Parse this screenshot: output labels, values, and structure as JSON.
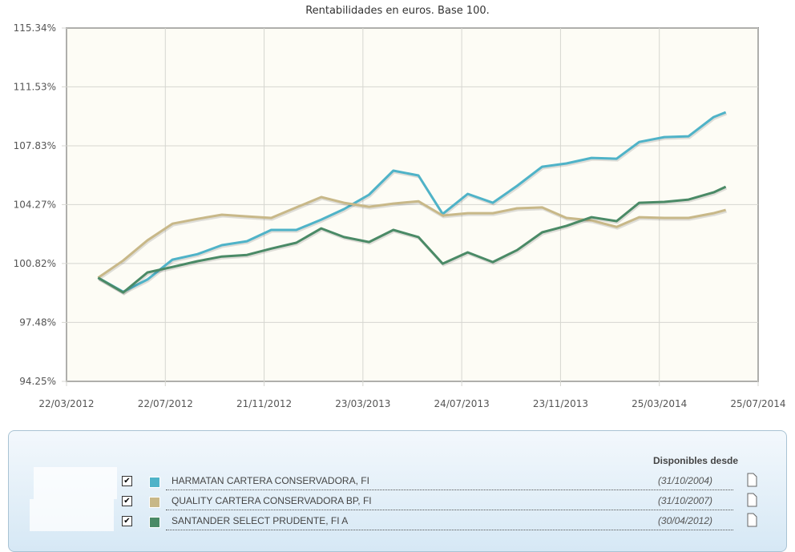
{
  "chart_data": {
    "type": "line",
    "title": "Rentabilidades en euros. Base 100.",
    "y_scale": "log",
    "ylim": [
      94.25,
      115.34
    ],
    "y_ticks": [
      "115.34%",
      "111.53%",
      "107.83%",
      "104.27%",
      "100.82%",
      "97.48%",
      "94.25%"
    ],
    "y_tick_values": [
      115.34,
      111.53,
      107.83,
      104.27,
      100.82,
      97.48,
      94.25
    ],
    "x_ticks": [
      "22/03/2012",
      "22/07/2012",
      "21/11/2012",
      "23/03/2013",
      "24/07/2013",
      "23/11/2013",
      "25/03/2014",
      "25/07/2014"
    ],
    "xlim": [
      "22/03/2012",
      "25/07/2014"
    ],
    "grid": true,
    "x": [
      "30/04/2012",
      "31/05/2012",
      "30/06/2012",
      "31/07/2012",
      "31/08/2012",
      "30/09/2012",
      "31/10/2012",
      "30/11/2012",
      "31/12/2012",
      "31/01/2013",
      "28/02/2013",
      "31/03/2013",
      "30/04/2013",
      "31/05/2013",
      "30/06/2013",
      "31/07/2013",
      "31/08/2013",
      "30/09/2013",
      "31/10/2013",
      "30/11/2013",
      "31/12/2013",
      "31/01/2014",
      "28/02/2014",
      "31/03/2014",
      "30/04/2014",
      "31/05/2014",
      "15/06/2014"
    ],
    "series": [
      {
        "name": "HARMATAN CARTERA CONSERVADORA, FI",
        "color": "#4fb3c8",
        "values": [
          100.0,
          99.2,
          99.9,
          101.04,
          101.36,
          101.88,
          102.11,
          102.77,
          102.77,
          103.38,
          104.0,
          104.86,
          106.31,
          106.02,
          103.71,
          104.91,
          104.38,
          105.39,
          106.55,
          106.75,
          107.09,
          107.04,
          108.07,
          108.37,
          108.42,
          109.62,
          109.92
        ]
      },
      {
        "name": "QUALITY CARTERA CONSERVADORA BP, FI",
        "color": "#c8b888",
        "values": [
          100.0,
          100.99,
          102.16,
          103.14,
          103.42,
          103.67,
          103.57,
          103.48,
          104.1,
          104.72,
          104.38,
          104.14,
          104.33,
          104.47,
          103.62,
          103.76,
          103.76,
          104.05,
          104.1,
          103.48,
          103.33,
          102.95,
          103.52,
          103.48,
          103.48,
          103.76,
          103.95
        ]
      },
      {
        "name": "SANTANDER SELECT PRUDENTE, FI A",
        "color": "#4a8a66",
        "values": [
          100.0,
          99.16,
          100.3,
          100.62,
          100.95,
          101.22,
          101.31,
          101.68,
          102.02,
          102.86,
          102.35,
          102.06,
          102.77,
          102.35,
          100.81,
          101.46,
          100.9,
          101.59,
          102.63,
          103.01,
          103.52,
          103.29,
          104.38,
          104.43,
          104.57,
          105.0,
          105.34
        ]
      }
    ]
  },
  "legend": {
    "header": "Disponibles desde",
    "items": [
      {
        "name": "HARMATAN CARTERA CONSERVADORA, FI",
        "since": "(31/10/2004)",
        "color": "#4fb3c8",
        "checked": true,
        "check": "✔"
      },
      {
        "name": "QUALITY CARTERA CONSERVADORA BP, FI",
        "since": "(31/10/2007)",
        "color": "#c8b888",
        "checked": true,
        "check": "✔"
      },
      {
        "name": "SANTANDER SELECT PRUDENTE, FI A",
        "since": "(30/04/2012)",
        "color": "#4a8a66",
        "checked": true,
        "check": "✔"
      }
    ],
    "item_icon": "document-icon"
  }
}
